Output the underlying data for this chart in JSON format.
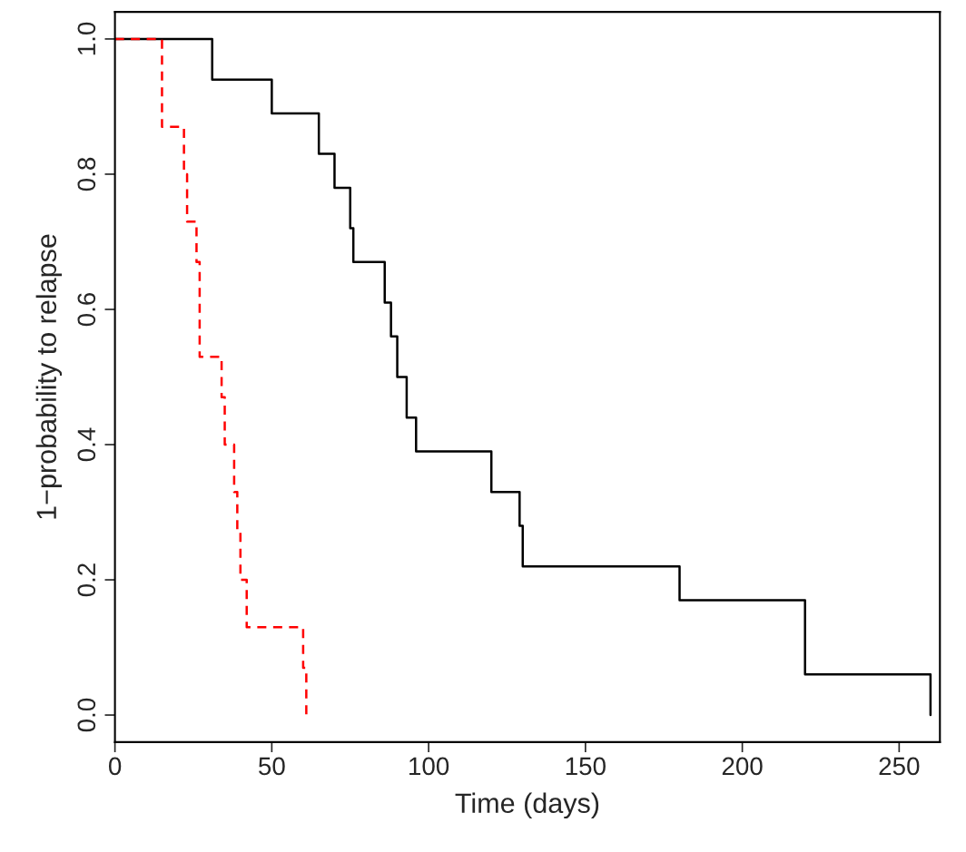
{
  "chart_data": {
    "type": "step",
    "xlabel": "Time (days)",
    "ylabel": "1−probability to relapse",
    "xlim": [
      0,
      263
    ],
    "xticks": [
      0,
      50,
      100,
      150,
      200,
      250
    ],
    "ylim": [
      -0.04,
      1.04
    ],
    "yticks": [
      {
        "value": 0,
        "label": "0.0"
      },
      {
        "value": 0.2,
        "label": "0.2"
      },
      {
        "value": 0.4,
        "label": "0.4"
      },
      {
        "value": 0.6,
        "label": "0.6"
      },
      {
        "value": 0.8,
        "label": "0.8"
      },
      {
        "value": 1,
        "label": "1.0"
      }
    ],
    "series": [
      {
        "color": "#000000",
        "line_style": "solid",
        "x": [
          0,
          31,
          50,
          65,
          70,
          75,
          76,
          86,
          88,
          90,
          93,
          96,
          120,
          129,
          130,
          180,
          220,
          260
        ],
        "values": [
          1,
          0.94,
          0.89,
          0.83,
          0.78,
          0.72,
          0.67,
          0.61,
          0.56,
          0.5,
          0.44,
          0.39,
          0.33,
          0.28,
          0.22,
          0.17,
          0.06,
          0
        ]
      },
      {
        "color": "#ff0000",
        "line_style": "dashed",
        "x": [
          0,
          15,
          22,
          23,
          26,
          27,
          34,
          35,
          38,
          39,
          40,
          42,
          60,
          61
        ],
        "values": [
          1,
          0.87,
          0.8,
          0.73,
          0.67,
          0.53,
          0.47,
          0.4,
          0.33,
          0.27,
          0.2,
          0.13,
          0.07,
          0
        ]
      }
    ]
  }
}
